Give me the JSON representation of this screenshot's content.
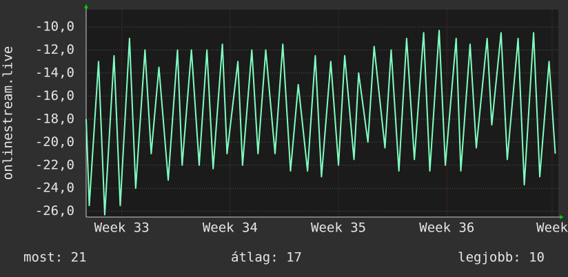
{
  "chart_data": {
    "type": "line",
    "y_label": "onlinestream.live",
    "x": [
      0,
      0.2,
      0.8,
      1.2,
      1.8,
      2.2,
      2.8,
      3.2,
      3.8,
      4.2,
      4.7,
      5.3,
      5.9,
      6.2,
      6.8,
      7.3,
      7.8,
      8.2,
      8.8,
      9.1,
      9.8,
      10.1,
      10.7,
      11.1,
      11.6,
      12.2,
      12.7,
      13.2,
      13.7,
      14.3,
      14.8,
      15.2,
      15.8,
      16.3,
      16.7,
      17.3,
      17.6,
      18.2,
      18.6,
      19.3,
      19.7,
      20.2,
      20.7,
      21.2,
      21.8,
      22.2,
      22.8,
      23.2,
      23.9,
      24.2,
      24.8,
      25.2,
      25.9,
      26.2,
      26.8,
      27.2,
      27.9,
      28.3,
      28.9,
      29.3,
      29.9,
      30.3
    ],
    "values": [
      -18,
      -25.5,
      -13,
      -26.3,
      -12.5,
      -25.5,
      -11,
      -24,
      -12,
      -21,
      -13.5,
      -23.3,
      -12,
      -22,
      -12,
      -22,
      -12,
      -22.3,
      -11.5,
      -21,
      -13,
      -22,
      -12,
      -21,
      -12,
      -21,
      -11.5,
      -22.5,
      -15,
      -22.5,
      -12.5,
      -23,
      -13,
      -22,
      -12.5,
      -21.5,
      -14,
      -20,
      -11.7,
      -20.5,
      -12,
      -22.5,
      -11,
      -21.5,
      -10.5,
      -22.5,
      -10.3,
      -22,
      -11,
      -22.5,
      -11.5,
      -20.5,
      -11,
      -18.5,
      -10.5,
      -21.5,
      -11,
      -23.7,
      -10.5,
      -23,
      -13,
      -21
    ],
    "color": "#80ffc0",
    "xlim": [
      0,
      30.5
    ],
    "xticks": [
      {
        "value": 2.3,
        "label": "Week 33"
      },
      {
        "value": 9.3,
        "label": "Week 34"
      },
      {
        "value": 16.3,
        "label": "Week 35"
      },
      {
        "value": 23.3,
        "label": "Week 36"
      },
      {
        "value": 30.1,
        "label": "Week"
      }
    ],
    "ylim": [
      -26.5,
      -8.5
    ],
    "yticks": [
      {
        "value": -10,
        "label": "-10,0"
      },
      {
        "value": -12,
        "label": "-12,0"
      },
      {
        "value": -14,
        "label": "-14,0"
      },
      {
        "value": -16,
        "label": "-16,0"
      },
      {
        "value": -18,
        "label": "-18,0"
      },
      {
        "value": -20,
        "label": "-20,0"
      },
      {
        "value": -22,
        "label": "-22,0"
      },
      {
        "value": -24,
        "label": "-24,0"
      },
      {
        "value": -26,
        "label": "-26,0"
      }
    ],
    "grid": true,
    "footer": [
      "most: 21",
      "átlag: 17",
      "legjobb: 10"
    ]
  }
}
